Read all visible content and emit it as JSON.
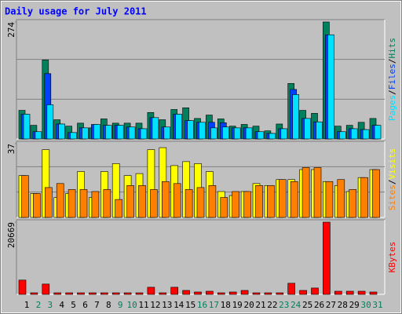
{
  "chart_data": [
    {
      "type": "bar",
      "title": "Daily usage for July 2011",
      "legend_separator": "/",
      "categories": [
        "1",
        "2",
        "3",
        "4",
        "5",
        "6",
        "7",
        "8",
        "9",
        "10",
        "11",
        "12",
        "13",
        "14",
        "15",
        "16",
        "17",
        "18",
        "19",
        "20",
        "21",
        "22",
        "23",
        "24",
        "25",
        "26",
        "27",
        "28",
        "29",
        "30",
        "31"
      ],
      "series": [
        {
          "name": "Hits",
          "color": "#00805c",
          "values": [
            67,
            32,
            185,
            45,
            30,
            37,
            26,
            47,
            37,
            37,
            37,
            62,
            45,
            69,
            73,
            48,
            56,
            47,
            30,
            34,
            30,
            19,
            35,
            130,
            67,
            60,
            274,
            30,
            32,
            39,
            48
          ]
        },
        {
          "name": "Files",
          "color": "#0040ff",
          "values": [
            58,
            17,
            153,
            35,
            15,
            26,
            34,
            32,
            32,
            28,
            24,
            50,
            28,
            58,
            43,
            39,
            39,
            38,
            26,
            26,
            17,
            13,
            24,
            116,
            48,
            40,
            244,
            17,
            24,
            22,
            32
          ]
        },
        {
          "name": "Pages",
          "color": "#00e0ff",
          "values": [
            58,
            17,
            80,
            35,
            15,
            26,
            34,
            32,
            32,
            28,
            24,
            50,
            28,
            58,
            43,
            39,
            26,
            28,
            26,
            26,
            17,
            13,
            24,
            104,
            48,
            40,
            244,
            17,
            24,
            22,
            32
          ]
        }
      ],
      "ylim": [
        0,
        274
      ],
      "yticks": [
        274
      ],
      "grid": true
    },
    {
      "type": "bar",
      "legend_separator": "/",
      "categories": [
        "1",
        "2",
        "3",
        "4",
        "5",
        "6",
        "7",
        "8",
        "9",
        "10",
        "11",
        "12",
        "13",
        "14",
        "15",
        "16",
        "17",
        "18",
        "19",
        "20",
        "21",
        "22",
        "23",
        "24",
        "25",
        "26",
        "27",
        "28",
        "29",
        "30",
        "31"
      ],
      "series": [
        {
          "name": "Visits",
          "color": "#ffff00",
          "values": [
            21,
            12,
            34,
            10,
            12,
            23,
            10,
            23,
            27,
            21,
            22,
            34,
            35,
            26,
            28,
            27,
            23,
            13,
            11,
            13,
            17,
            16,
            19,
            19,
            24,
            24,
            18,
            16,
            13,
            20,
            24
          ]
        },
        {
          "name": "Sites",
          "color": "#ff8000",
          "values": [
            21,
            12,
            15,
            17,
            14,
            14,
            13,
            14,
            9,
            16,
            16,
            14,
            18,
            17,
            14,
            15,
            16,
            10,
            13,
            13,
            16,
            16,
            19,
            18,
            25,
            25,
            18,
            19,
            14,
            20,
            24
          ]
        }
      ],
      "ylim": [
        0,
        37
      ],
      "yticks": [
        37
      ],
      "grid": true
    },
    {
      "type": "bar",
      "categories": [
        "1",
        "2",
        "3",
        "4",
        "5",
        "6",
        "7",
        "8",
        "9",
        "10",
        "11",
        "12",
        "13",
        "14",
        "15",
        "16",
        "17",
        "18",
        "19",
        "20",
        "21",
        "22",
        "23",
        "24",
        "25",
        "26",
        "27",
        "28",
        "29",
        "30",
        "31"
      ],
      "highlight_categories": [
        "2",
        "3",
        "9",
        "10",
        "16",
        "17",
        "23",
        "24",
        "30",
        "31"
      ],
      "highlight_color": "#00805c",
      "series": [
        {
          "name": "KBytes",
          "color": "#ff0000",
          "values": [
            4090,
            450,
            2950,
            450,
            450,
            450,
            450,
            450,
            450,
            450,
            450,
            2040,
            450,
            2040,
            1130,
            680,
            900,
            450,
            680,
            1130,
            450,
            450,
            450,
            3180,
            1130,
            1820,
            20669,
            900,
            900,
            900,
            680
          ]
        }
      ],
      "ylim": [
        0,
        20669
      ],
      "yticks": [
        20669
      ],
      "grid": false
    }
  ]
}
